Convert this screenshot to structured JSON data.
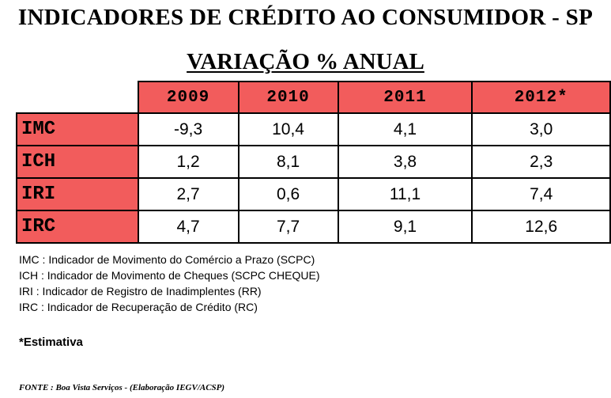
{
  "title": "INDICADORES DE CRÉDITO AO CONSUMIDOR - SP",
  "subtitle": "VARIAÇÃO %  ANUAL",
  "table": {
    "years": [
      "2009",
      "2010",
      "2011",
      "2012*"
    ],
    "rows": [
      {
        "label": "IMC",
        "values": [
          "-9,3",
          "10,4",
          "4,1",
          "3,0"
        ]
      },
      {
        "label": "ICH",
        "values": [
          "1,2",
          "8,1",
          "3,8",
          "2,3"
        ]
      },
      {
        "label": "IRI",
        "values": [
          "2,7",
          "0,6",
          "11,1",
          "7,4"
        ]
      },
      {
        "label": "IRC",
        "values": [
          "4,7",
          "7,7",
          "9,1",
          "12,6"
        ]
      }
    ]
  },
  "legend": [
    "IMC : Indicador de Movimento do Comércio a Prazo (SCPC)",
    "ICH : Indicador de Movimento de Cheques (SCPC CHEQUE)",
    "IRI : Indicador de Registro de Inadimplentes (RR)",
    "IRC : Indicador de Recuperação de Crédito (RC)"
  ],
  "note": "*Estimativa",
  "source": "FONTE : Boa Vista Serviços - (Elaboração IEGV/ACSP)",
  "colors": {
    "header_fill": "#f25c5c"
  }
}
